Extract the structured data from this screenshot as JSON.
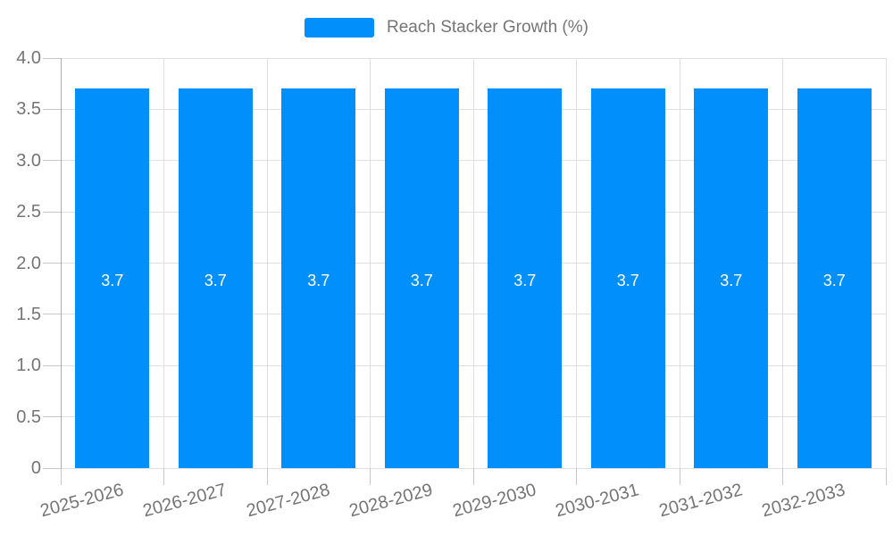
{
  "chart_data": {
    "type": "bar",
    "title": "",
    "legend_position": "top",
    "categories": [
      "2025-2026",
      "2026-2027",
      "2027-2028",
      "2028-2029",
      "2029-2030",
      "2030-2031",
      "2031-2032",
      "2032-2033"
    ],
    "series": [
      {
        "name": "Reach Stacker Growth (%)",
        "values": [
          3.7,
          3.7,
          3.7,
          3.7,
          3.7,
          3.7,
          3.7,
          3.7
        ],
        "data_labels": [
          "3.7",
          "3.7",
          "3.7",
          "3.7",
          "3.7",
          "3.7",
          "3.7",
          "3.7"
        ]
      }
    ],
    "xlabel": "",
    "ylabel": "",
    "ylim": [
      0,
      4.0
    ],
    "ytick_values": [
      0,
      0.5,
      1,
      1.5,
      2,
      2.5,
      3,
      3.5,
      4
    ],
    "ytick_labels": [
      "0",
      "0.5",
      "1.0",
      "1.5",
      "2.0",
      "2.5",
      "3.0",
      "3.5",
      "4.0"
    ],
    "grid": true,
    "show_data_labels": true,
    "colors": {
      "bar": "#008FFB",
      "bar_label": "#FFFFFF",
      "grid": "#E0E0E0",
      "axis": "#ABABAB",
      "tick": "#C8C8C8",
      "axis_label": "#757575",
      "legend_text": "#757575"
    }
  }
}
